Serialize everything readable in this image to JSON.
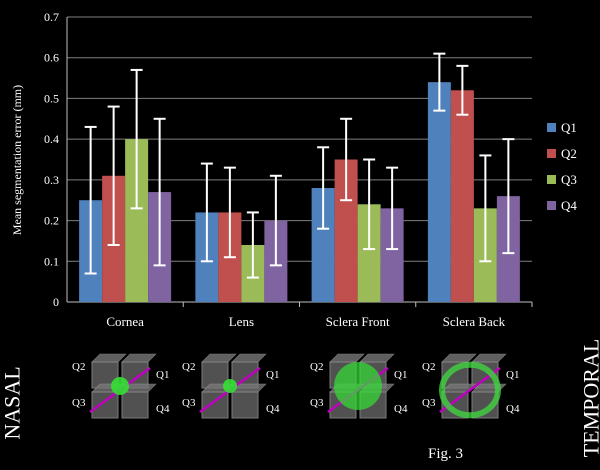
{
  "chart_data": {
    "type": "bar",
    "ylabel": "Mean segmentation error (mm)",
    "ylim": [
      0,
      0.7
    ],
    "yticks": [
      "0",
      "0.1",
      "0.2",
      "0.3",
      "0.4",
      "0.5",
      "0.6",
      "0.7"
    ],
    "categories": [
      "Cornea",
      "Lens",
      "Sclera Front",
      "Sclera Back"
    ],
    "series": [
      {
        "name": "Q1",
        "color": "#4f81bd",
        "values": [
          0.25,
          0.22,
          0.28,
          0.54
        ],
        "err_low": [
          0.07,
          0.1,
          0.18,
          0.47
        ],
        "err_high": [
          0.43,
          0.34,
          0.38,
          0.61
        ]
      },
      {
        "name": "Q2",
        "color": "#c0504d",
        "values": [
          0.31,
          0.22,
          0.35,
          0.52
        ],
        "err_low": [
          0.14,
          0.11,
          0.25,
          0.46
        ],
        "err_high": [
          0.48,
          0.33,
          0.45,
          0.58
        ]
      },
      {
        "name": "Q3",
        "color": "#9bbb59",
        "values": [
          0.4,
          0.14,
          0.24,
          0.23
        ],
        "err_low": [
          0.23,
          0.06,
          0.13,
          0.1
        ],
        "err_high": [
          0.57,
          0.22,
          0.35,
          0.36
        ]
      },
      {
        "name": "Q4",
        "color": "#8064a2",
        "values": [
          0.27,
          0.2,
          0.23,
          0.26
        ],
        "err_low": [
          0.09,
          0.09,
          0.13,
          0.12
        ],
        "err_high": [
          0.45,
          0.31,
          0.33,
          0.4
        ]
      }
    ],
    "grid": true,
    "legend": "right"
  },
  "diagram": {
    "quadrant_labels": [
      "Q2",
      "Q1",
      "Q3",
      "Q4"
    ],
    "left_label": "NASAL",
    "right_label": "TEMPORAL",
    "caption": "Fig. 3"
  }
}
